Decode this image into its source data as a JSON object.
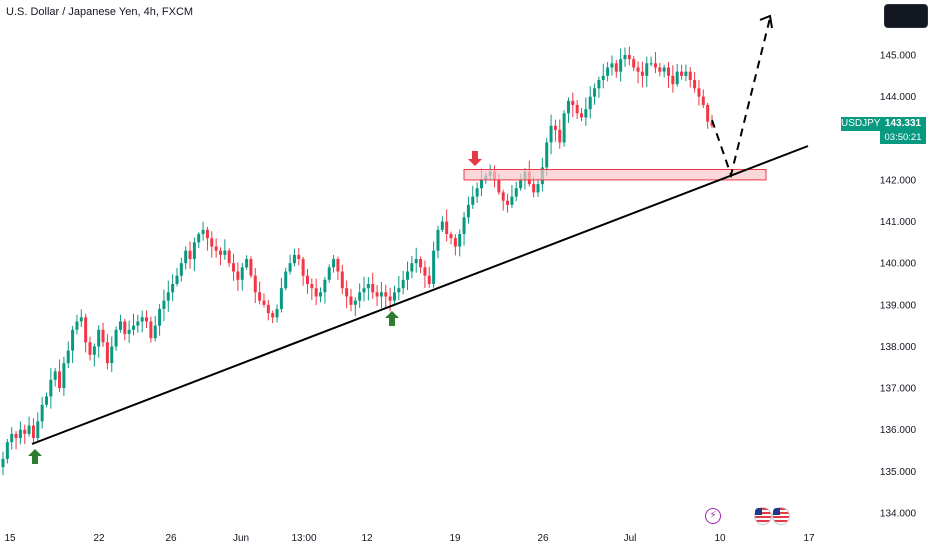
{
  "header": {
    "title": "U.S. Dollar / Japanese Yen, 4h, FXCM"
  },
  "price_tag": {
    "symbol": "USDJPY",
    "last_price": "143.331",
    "countdown": "03:50:21"
  },
  "colors": {
    "up": "#089981",
    "down": "#f23645",
    "zone_fill": "#f7c6cb",
    "zone_border": "#f23645",
    "trendline": "#000000",
    "arrow_up": "#2e7d32",
    "arrow_down": "#e53945"
  },
  "icons": {
    "event_lightning": "lightning-icon",
    "event_us_flag_1": "us-flag-icon",
    "event_us_flag_2": "us-flag-icon"
  },
  "chart_data": {
    "type": "candlestick",
    "symbol": "USDJPY",
    "timeframe": "4h",
    "y_ticks": [
      "145.000",
      "144.000",
      "143.000",
      "142.000",
      "141.000",
      "140.000",
      "139.000",
      "138.000",
      "137.000",
      "136.000",
      "135.000",
      "134.000"
    ],
    "ylim": [
      133.85,
      145.95
    ],
    "x_ticks": [
      "15",
      "22",
      "26",
      "Jun",
      "13:00",
      "12",
      "19",
      "26",
      "Jul",
      "10",
      "17"
    ],
    "grid": false,
    "annotations": {
      "trendline": {
        "from": {
          "date": "May 16",
          "price": 135.6
        },
        "to": {
          "date": "Jul 12",
          "price": 142.0
        }
      },
      "resistance_zone": {
        "price_low": 142.0,
        "price_high": 142.25
      },
      "up_arrows": [
        {
          "date": "May 16",
          "price": 135.6
        },
        {
          "date": "Jun 13",
          "price": 139.0
        }
      ],
      "down_arrows": [
        {
          "date": "Jun 19",
          "price": 142.25
        }
      ],
      "projection": [
        {
          "date": "Jul 8",
          "price": 143.3
        },
        {
          "date": "Jul 11",
          "price": 142.05
        },
        {
          "date": "Jul 13",
          "price": 145.8
        }
      ]
    },
    "closes": [
      135.3,
      135.7,
      135.9,
      135.8,
      136.0,
      135.9,
      136.1,
      135.8,
      136.2,
      136.6,
      136.8,
      137.2,
      137.4,
      137.0,
      137.6,
      137.9,
      138.4,
      138.6,
      138.7,
      138.1,
      137.8,
      138.0,
      138.4,
      138.1,
      137.6,
      138.0,
      138.4,
      138.6,
      138.3,
      138.4,
      138.5,
      138.6,
      138.7,
      138.6,
      138.2,
      138.5,
      138.9,
      139.1,
      139.3,
      139.5,
      139.7,
      140.0,
      140.3,
      140.1,
      140.5,
      140.7,
      140.8,
      140.6,
      140.4,
      140.3,
      140.2,
      140.3,
      140.0,
      139.8,
      139.6,
      139.9,
      140.1,
      139.7,
      139.3,
      139.1,
      139.0,
      138.8,
      138.7,
      138.9,
      139.4,
      139.8,
      140.0,
      140.2,
      140.1,
      139.7,
      139.5,
      139.4,
      139.2,
      139.3,
      139.6,
      139.9,
      140.1,
      139.8,
      139.4,
      139.2,
      139.0,
      139.1,
      139.3,
      139.4,
      139.5,
      139.3,
      139.2,
      139.3,
      139.2,
      139.1,
      139.3,
      139.4,
      139.6,
      139.8,
      140.0,
      140.1,
      139.9,
      139.7,
      139.5,
      140.3,
      140.8,
      141.0,
      140.7,
      140.6,
      140.4,
      140.7,
      141.1,
      141.4,
      141.6,
      141.8,
      142.0,
      142.1,
      142.2,
      142.0,
      141.7,
      141.5,
      141.4,
      141.6,
      141.8,
      142.0,
      142.2,
      141.9,
      141.7,
      141.9,
      142.3,
      142.9,
      143.3,
      143.2,
      142.9,
      143.6,
      143.9,
      143.8,
      143.6,
      143.5,
      143.7,
      144.0,
      144.2,
      144.4,
      144.5,
      144.7,
      144.8,
      144.6,
      144.9,
      145.0,
      144.9,
      144.7,
      144.6,
      144.5,
      144.8,
      144.8,
      144.7,
      144.6,
      144.7,
      144.5,
      144.3,
      144.6,
      144.5,
      144.6,
      144.4,
      144.2,
      144.0,
      143.8,
      143.4,
      143.3
    ]
  }
}
